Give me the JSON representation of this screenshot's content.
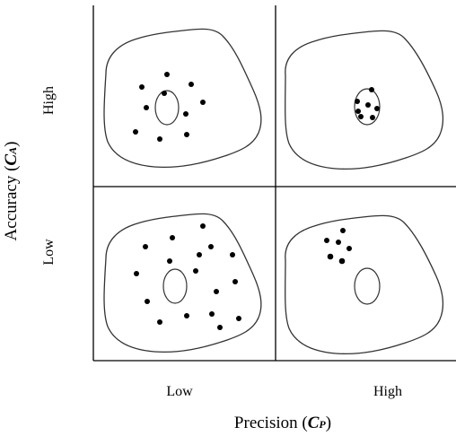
{
  "y_axis": {
    "label_main": "Accuracy (",
    "label_symbol": "C",
    "label_subscript": "A",
    "label_close": ")",
    "ticks": [
      "High",
      "Low"
    ]
  },
  "x_axis": {
    "label_main": "Precision (",
    "label_symbol": "C",
    "label_subscript": "P",
    "label_close": ")",
    "ticks": [
      "Low",
      "High"
    ]
  },
  "quadrants": [
    {
      "accuracy": "High",
      "precision": "Low",
      "dots": 10
    },
    {
      "accuracy": "High",
      "precision": "High",
      "dots": 7
    },
    {
      "accuracy": "Low",
      "precision": "Low",
      "dots": 17
    },
    {
      "accuracy": "Low",
      "precision": "High",
      "dots": 6
    }
  ]
}
